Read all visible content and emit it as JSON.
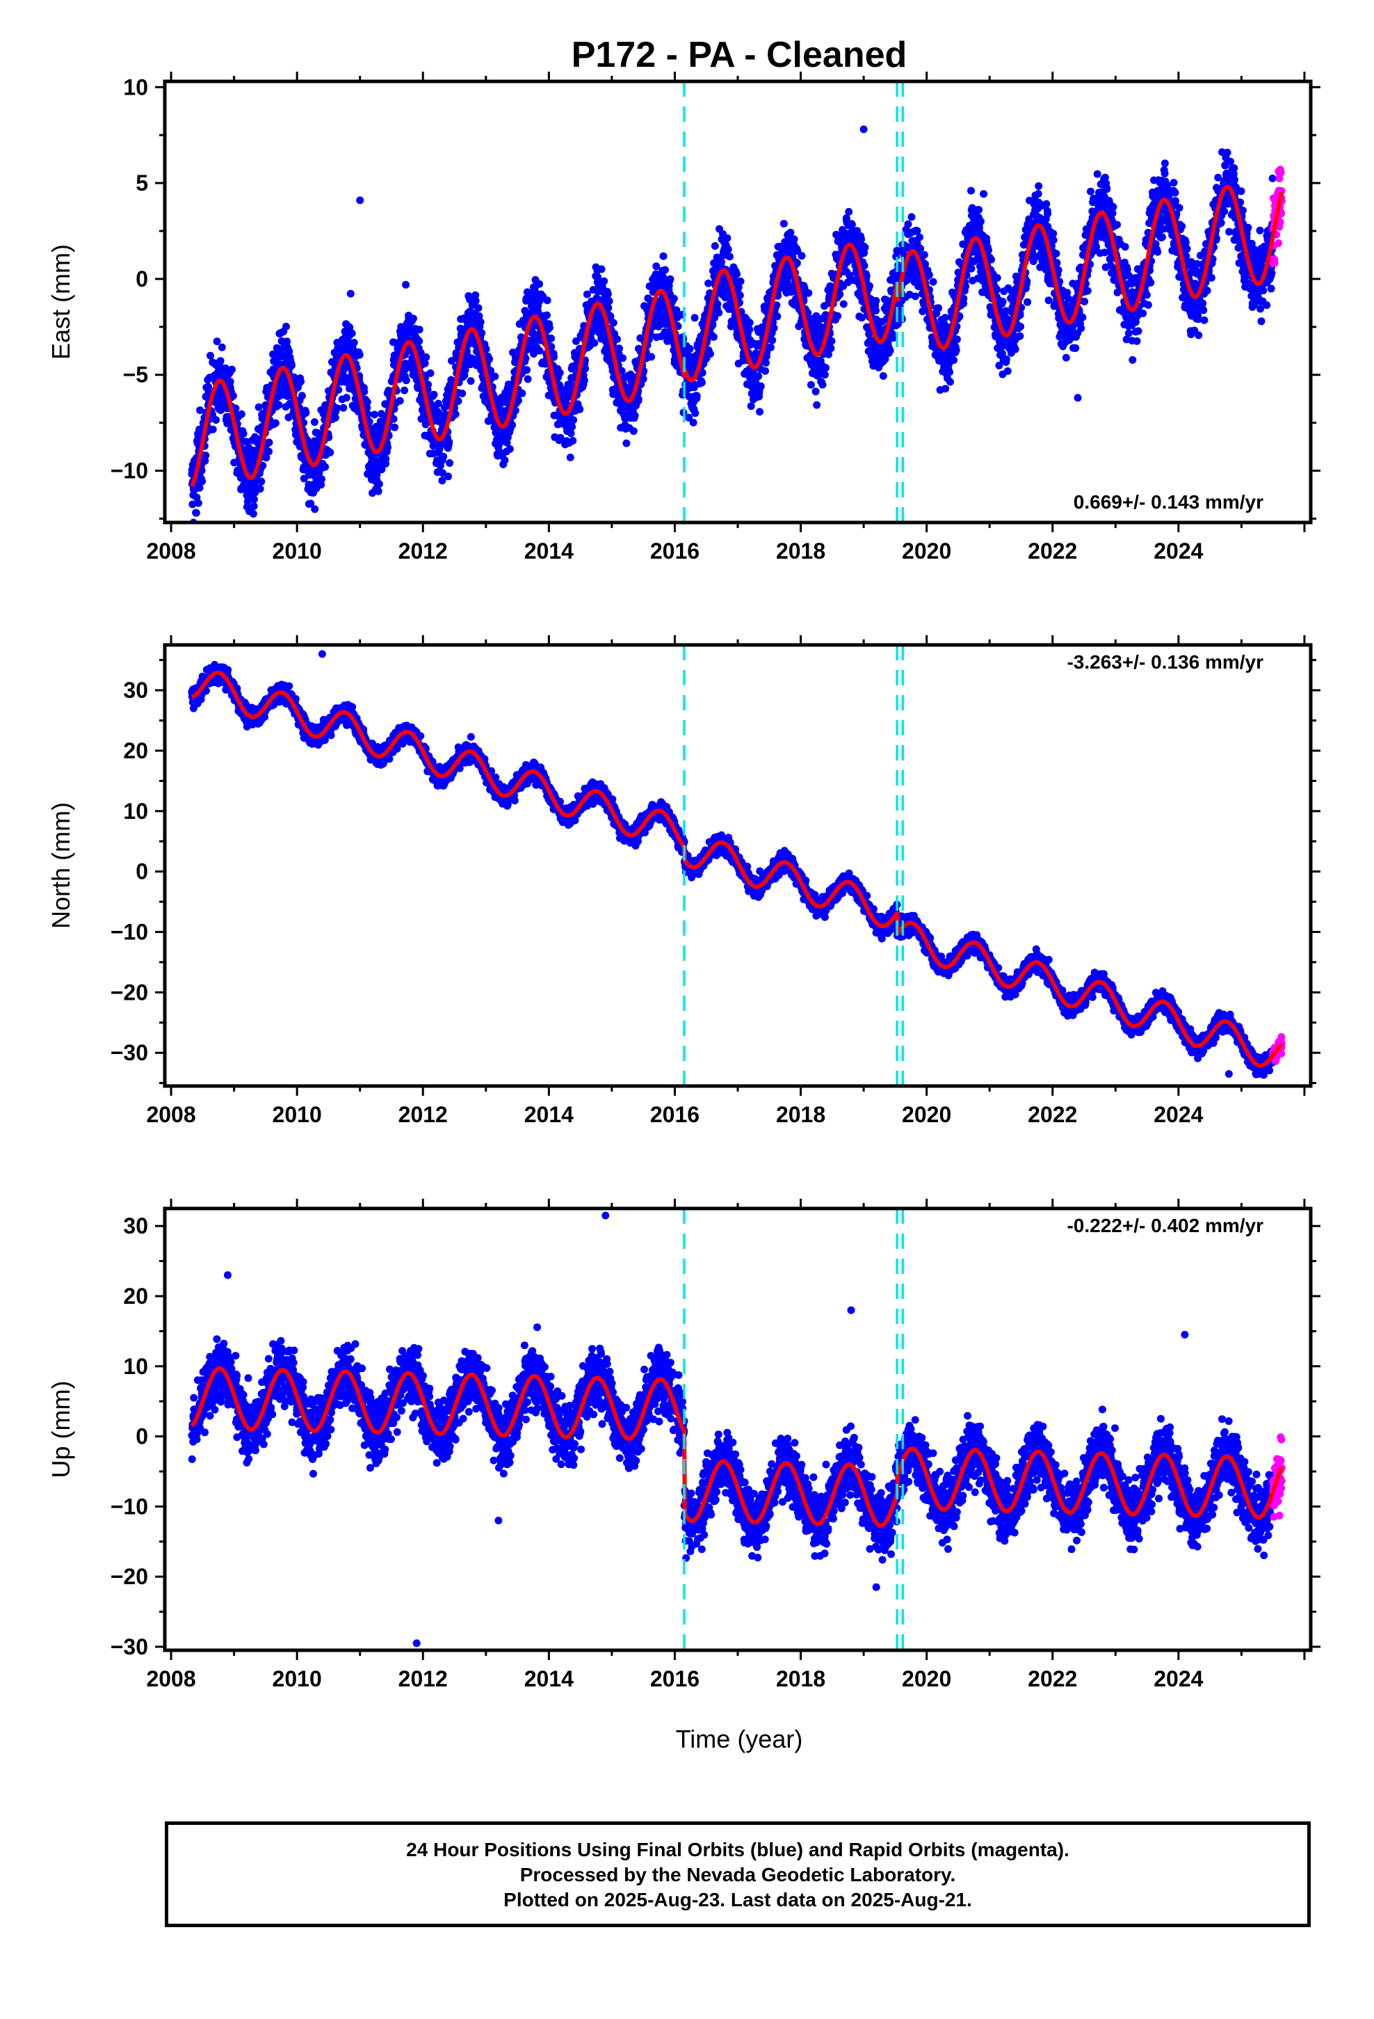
{
  "chart_data": {
    "title": "P172  - PA - Cleaned",
    "type": "scatter",
    "xlabel": "Time (year)",
    "xlim": [
      2007.9,
      2026.1
    ],
    "xticks": [
      2008,
      2010,
      2012,
      2014,
      2016,
      2018,
      2020,
      2022,
      2024
    ],
    "vertical_dashed_lines": [
      2016.15,
      2019.53,
      2019.62
    ],
    "rapid_orbit_start": 2025.5,
    "last_data": 2025.64,
    "colors": {
      "final": "#0000ff",
      "rapid": "#ff00ff",
      "model": "#ff0000",
      "event": "#00e5ee"
    },
    "panels": [
      {
        "ylabel": "East (mm)",
        "ylim": [
          -12.7,
          10.3
        ],
        "yticks": [
          10,
          5,
          0,
          -5,
          -10
        ],
        "rate": "0.669+/- 0.143 mm/yr",
        "rate_position": "bottom-right",
        "model": {
          "start": 2008.33,
          "value_at_start": -8.3,
          "rate": 0.669,
          "seasonal_amplitude": 2.7,
          "noise": 1.4,
          "offsets": [
            {
              "year": 2016.15,
              "change": 0.4
            },
            {
              "year": 2019.53,
              "change": -1.0
            }
          ]
        },
        "outliers": [
          {
            "x": 2008.4,
            "y": -12.2
          },
          {
            "x": 2012.4,
            "y": -10.3
          },
          {
            "x": 2022.4,
            "y": -6.2
          },
          {
            "x": 2011.0,
            "y": 4.1
          },
          {
            "x": 2019.0,
            "y": 7.8
          }
        ]
      },
      {
        "ylabel": "North (mm)",
        "ylim": [
          -35.5,
          37.5
        ],
        "yticks": [
          30,
          20,
          10,
          0,
          -10,
          -20,
          -30
        ],
        "rate": "-3.263+/- 0.136 mm/yr",
        "rate_position": "top-right",
        "model": {
          "start": 2008.33,
          "value_at_start": 31.5,
          "rate": -3.263,
          "seasonal_amplitude": 2.8,
          "noise": 1.1,
          "offsets": [
            {
              "year": 2016.15,
              "change": -2.0
            },
            {
              "year": 2019.53,
              "change": -3.5
            }
          ]
        },
        "outliers": [
          {
            "x": 2010.4,
            "y": 36.0
          },
          {
            "x": 2024.8,
            "y": -33.5
          }
        ]
      },
      {
        "ylabel": "Up (mm)",
        "ylim": [
          -30.5,
          32.5
        ],
        "yticks": [
          30,
          20,
          10,
          0,
          -10,
          -20,
          -30
        ],
        "rate": "-0.222+/- 0.402 mm/yr",
        "rate_position": "top-right",
        "model": {
          "start": 2008.33,
          "value_at_start": 5.5,
          "rate": -0.222,
          "seasonal_amplitude": 4.3,
          "noise": 3.2,
          "offsets": [
            {
              "year": 2016.15,
              "change": -11.5
            },
            {
              "year": 2019.53,
              "change": 2.5
            }
          ]
        },
        "outliers": [
          {
            "x": 2011.9,
            "y": -29.5
          },
          {
            "x": 2014.9,
            "y": 31.5
          },
          {
            "x": 2008.9,
            "y": 23.0
          },
          {
            "x": 2013.2,
            "y": -12.0
          },
          {
            "x": 2018.8,
            "y": 18.0
          },
          {
            "x": 2019.2,
            "y": -21.5
          },
          {
            "x": 2024.1,
            "y": 14.5
          }
        ]
      }
    ]
  },
  "footer": {
    "line1": "24 Hour Positions Using Final Orbits (blue) and Rapid Orbits (magenta).",
    "line2": "Processed by the Nevada Geodetic Laboratory.",
    "line3": "Plotted on 2025-Aug-23. Last data on 2025-Aug-21."
  }
}
